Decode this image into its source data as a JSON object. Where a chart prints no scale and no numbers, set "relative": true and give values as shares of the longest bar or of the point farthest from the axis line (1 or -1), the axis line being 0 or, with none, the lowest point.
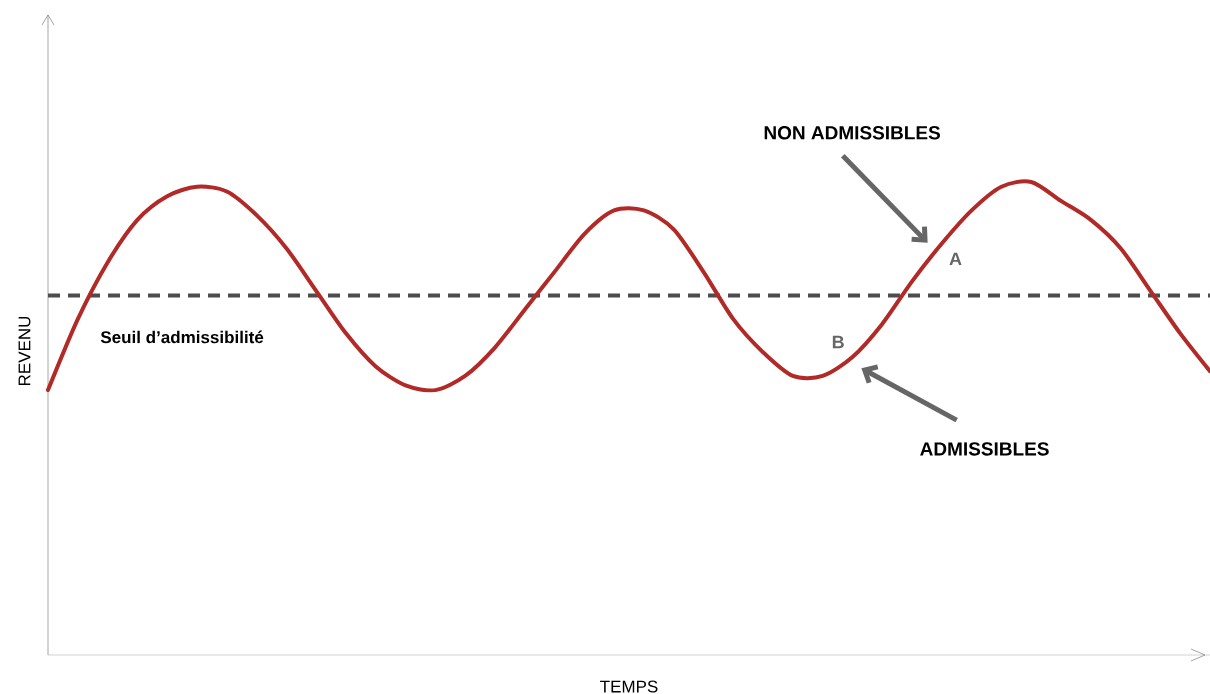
{
  "chart_data": {
    "type": "line",
    "relative": true,
    "xlabel": "TEMPS",
    "ylabel": "REVENU",
    "color": "#b22a27",
    "categories": [
      null,
      null,
      null,
      null,
      null,
      null,
      null,
      null,
      null,
      null,
      null,
      null,
      null,
      null,
      null,
      null,
      null,
      null,
      null,
      null,
      null,
      null,
      null,
      null,
      null,
      null,
      null,
      null,
      null,
      null,
      null,
      null,
      null,
      null,
      null,
      null,
      null,
      null,
      null,
      null
    ],
    "values": [
      0.56,
      0.71,
      0.83,
      0.92,
      0.97,
      0.99,
      0.98,
      0.93,
      0.86,
      0.77,
      0.68,
      0.61,
      0.57,
      0.56,
      0.59,
      0.65,
      0.73,
      0.81,
      0.89,
      0.94,
      0.94,
      0.9,
      0.81,
      0.71,
      0.64,
      0.59,
      0.59,
      0.63,
      0.7,
      0.79,
      0.87,
      0.94,
      0.99,
      1.0,
      0.96,
      0.92,
      0.86,
      0.77,
      0.68,
      0.6
    ],
    "ref_lines": [
      {
        "axis": "y",
        "value": 0.76,
        "label": "Seuil d’admissibilité",
        "color": "#4d4d4d",
        "line_style": "dashed"
      }
    ],
    "annotations": [
      "NON ADMISSIBLES",
      "ADMISSIBLES",
      "A",
      "B"
    ]
  }
}
